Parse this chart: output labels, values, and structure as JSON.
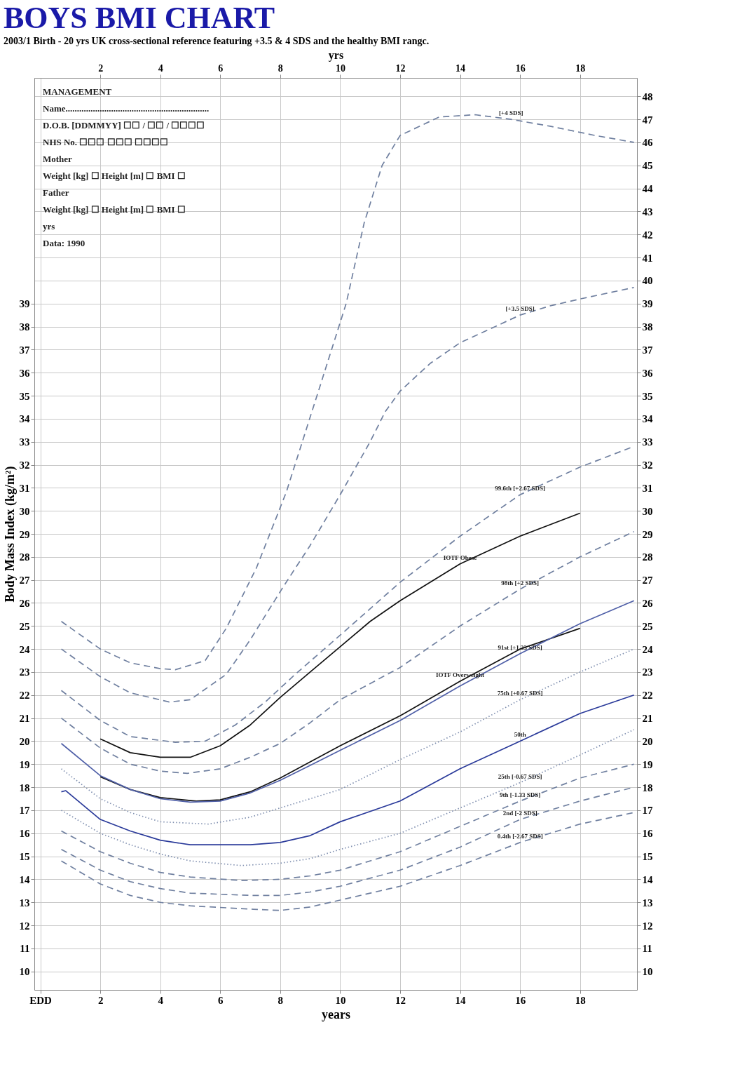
{
  "chart_data": {
    "type": "line",
    "title": "BOYS BMI CHART",
    "subtitle": "2003/1 Birth - 20 yrs UK cross-sectional reference featuring +3.5 & 4 SDS and the healthy BMI rangc.",
    "xlabel": "years",
    "x2label": "yrs",
    "ylabel": "Body Mass Index (kg/m²)",
    "xlim": [
      -0.2,
      19.9
    ],
    "xticks": [
      {
        "value": 0,
        "label": "EDD"
      },
      2,
      4,
      6,
      8,
      10,
      12,
      14,
      16,
      18
    ],
    "x2lim": [
      -0.2,
      19.9
    ],
    "x2ticks": [
      2,
      4,
      6,
      8,
      10,
      12,
      14,
      16,
      18
    ],
    "ylim": [
      9.2,
      48.8
    ],
    "yticks": [
      10,
      11,
      12,
      13,
      14,
      15,
      16,
      17,
      18,
      19,
      20,
      21,
      22,
      23,
      24,
      25,
      26,
      27,
      28,
      29,
      30,
      31,
      32,
      33,
      34,
      35,
      36,
      37,
      38,
      39
    ],
    "y2lim": [
      9.2,
      48.8
    ],
    "y2ticks": [
      10,
      11,
      12,
      13,
      14,
      15,
      16,
      17,
      18,
      19,
      20,
      21,
      22,
      23,
      24,
      25,
      26,
      27,
      28,
      29,
      30,
      31,
      32,
      33,
      34,
      35,
      36,
      37,
      38,
      39,
      40,
      41,
      42,
      43,
      44,
      45,
      46,
      47,
      48
    ],
    "grid": true,
    "series": [
      {
        "name": "[+4 SDS]",
        "color": "#7080a0",
        "line_style": "dashed",
        "x": [
          0.7,
          2,
          3,
          4,
          4.5,
          5.5,
          6.2,
          7.2,
          8.2,
          9.3,
          10.2,
          10.8,
          11.4,
          12,
          13.3,
          14.5,
          15.7,
          17,
          18.5,
          19.8
        ],
        "values": [
          25.2,
          24.0,
          23.4,
          23.15,
          23.1,
          23.5,
          24.9,
          27.5,
          30.8,
          35.3,
          39.0,
          42.5,
          45.0,
          46.3,
          47.1,
          47.2,
          47.0,
          46.7,
          46.3,
          46.0
        ]
      },
      {
        "name": "[+3.5 SDS]",
        "color": "#7080a0",
        "line_style": "dashed",
        "x": [
          0.7,
          2,
          3,
          4.3,
          5,
          6.2,
          7,
          8.1,
          9,
          10,
          11,
          11.5,
          12,
          13,
          14,
          15,
          16,
          17,
          18,
          19.8
        ],
        "values": [
          24.0,
          22.8,
          22.1,
          21.7,
          21.8,
          22.9,
          24.4,
          26.7,
          28.5,
          30.7,
          33.0,
          34.3,
          35.2,
          36.4,
          37.3,
          37.9,
          38.5,
          38.9,
          39.2,
          39.7
        ]
      },
      {
        "name": "99.6th [+2.67 SDS]",
        "color": "#7080a0",
        "line_style": "dashed",
        "x": [
          0.7,
          2,
          3,
          4.5,
          5.5,
          6.5,
          7.5,
          8.5,
          10,
          12,
          14,
          16,
          18,
          19.8
        ],
        "values": [
          22.2,
          20.9,
          20.2,
          19.95,
          20.0,
          20.7,
          21.7,
          22.9,
          24.6,
          26.9,
          28.9,
          30.7,
          31.9,
          32.8
        ]
      },
      {
        "name": "IOTF Obese",
        "color": "#111111",
        "line_style": "solid",
        "x": [
          2,
          3,
          4,
          5,
          6,
          7,
          8,
          9,
          10,
          11,
          12,
          14,
          16,
          18
        ],
        "values": [
          20.1,
          19.5,
          19.3,
          19.3,
          19.8,
          20.7,
          21.9,
          23.0,
          24.1,
          25.2,
          26.1,
          27.7,
          28.9,
          29.9
        ]
      },
      {
        "name": "98th [+2 SDS]",
        "color": "#7080a0",
        "line_style": "dashed",
        "x": [
          0.7,
          2,
          3,
          4,
          4.9,
          6,
          7,
          8,
          9,
          10,
          12,
          14,
          16,
          18,
          19.8
        ],
        "values": [
          21.0,
          19.7,
          19.0,
          18.7,
          18.6,
          18.8,
          19.3,
          19.9,
          20.8,
          21.8,
          23.2,
          25.0,
          26.6,
          28.0,
          29.1
        ]
      },
      {
        "name": "IOTF Overweight",
        "color": "#111111",
        "line_style": "solid",
        "x": [
          2,
          3,
          4,
          5.2,
          6,
          7,
          8,
          9,
          10,
          12,
          14,
          16,
          18
        ],
        "values": [
          18.45,
          17.9,
          17.55,
          17.4,
          17.45,
          17.8,
          18.4,
          19.1,
          19.8,
          21.1,
          22.6,
          24.0,
          24.9
        ]
      },
      {
        "name": "91st [+1.33 SDS]",
        "color": "#5060a8",
        "line_style": "solid",
        "x": [
          0.7,
          2,
          3,
          4,
          5,
          6,
          7,
          8,
          9,
          10,
          12,
          14,
          16,
          18,
          19.8
        ],
        "values": [
          19.9,
          18.5,
          17.9,
          17.5,
          17.35,
          17.4,
          17.75,
          18.3,
          18.95,
          19.6,
          20.9,
          22.4,
          23.8,
          25.1,
          26.1
        ]
      },
      {
        "name": "75th [+0.67 SDS]",
        "color": "#8090b0",
        "line_style": "dotted",
        "x": [
          0.7,
          2,
          3,
          4,
          5.6,
          7,
          8,
          9,
          10,
          12,
          14,
          16,
          18,
          19.8
        ],
        "values": [
          18.8,
          17.5,
          16.9,
          16.5,
          16.4,
          16.7,
          17.1,
          17.5,
          17.9,
          19.2,
          20.4,
          21.8,
          23.0,
          24.0
        ]
      },
      {
        "name": "50th",
        "color": "#2a3a9a",
        "line_style": "solid",
        "x": [
          0.7,
          0.85,
          2,
          3,
          4,
          5,
          6.1,
          7,
          8,
          9,
          10,
          12,
          14,
          16,
          18,
          19.8
        ],
        "values": [
          17.8,
          17.85,
          16.6,
          16.1,
          15.7,
          15.5,
          15.5,
          15.5,
          15.6,
          15.9,
          16.5,
          17.4,
          18.8,
          20.0,
          21.2,
          22.0
        ]
      },
      {
        "name": "25th [-0.67 SDS]",
        "color": "#8090b0",
        "line_style": "dotted",
        "x": [
          0.7,
          2,
          3,
          4,
          5,
          6.7,
          8,
          9,
          10,
          12,
          14,
          16,
          18,
          19.8
        ],
        "values": [
          17.0,
          16.0,
          15.5,
          15.1,
          14.8,
          14.6,
          14.7,
          14.9,
          15.3,
          16.0,
          17.1,
          18.2,
          19.4,
          20.5
        ]
      },
      {
        "name": "9th [-1.33 SDS]",
        "color": "#7080a0",
        "line_style": "dashed",
        "x": [
          0.7,
          2,
          3,
          4,
          5,
          6.7,
          8,
          9,
          10,
          12,
          14,
          16,
          18,
          19.8
        ],
        "values": [
          16.1,
          15.2,
          14.7,
          14.3,
          14.1,
          13.95,
          14.0,
          14.15,
          14.4,
          15.2,
          16.3,
          17.4,
          18.4,
          19.0
        ]
      },
      {
        "name": "2nd [-2 SDS]",
        "color": "#7080a0",
        "line_style": "dashed",
        "x": [
          0.7,
          2,
          3,
          4,
          5,
          7.1,
          8,
          9,
          10,
          12,
          14,
          16,
          18,
          19.8
        ],
        "values": [
          15.3,
          14.4,
          13.9,
          13.6,
          13.4,
          13.3,
          13.3,
          13.45,
          13.7,
          14.4,
          15.4,
          16.6,
          17.4,
          18.0
        ]
      },
      {
        "name": "0.4th [-2.67 SDS]",
        "color": "#7080a0",
        "line_style": "dashed",
        "x": [
          0.7,
          2,
          3,
          4,
          5,
          7.1,
          8,
          9,
          10,
          12,
          14,
          16,
          18,
          19.8
        ],
        "values": [
          14.8,
          13.8,
          13.3,
          13.0,
          12.85,
          12.7,
          12.65,
          12.8,
          13.1,
          13.7,
          14.6,
          15.6,
          16.4,
          16.9
        ]
      }
    ],
    "annotations": [
      "MANAGEMENT",
      "Name...............................................................",
      "D.O.B. [DDMMYY]  ☐☐ / ☐☐ / ☐☐☐☐",
      "NHS No.  ☐☐☐  ☐☐☐  ☐☐☐☐",
      "Mother",
      "Weight [kg] ☐   Height [m] ☐   BMI ☐",
      "Father",
      "Weight [kg] ☐   Height [m] ☐   BMI ☐",
      "yrs",
      "Data: 1990"
    ]
  }
}
